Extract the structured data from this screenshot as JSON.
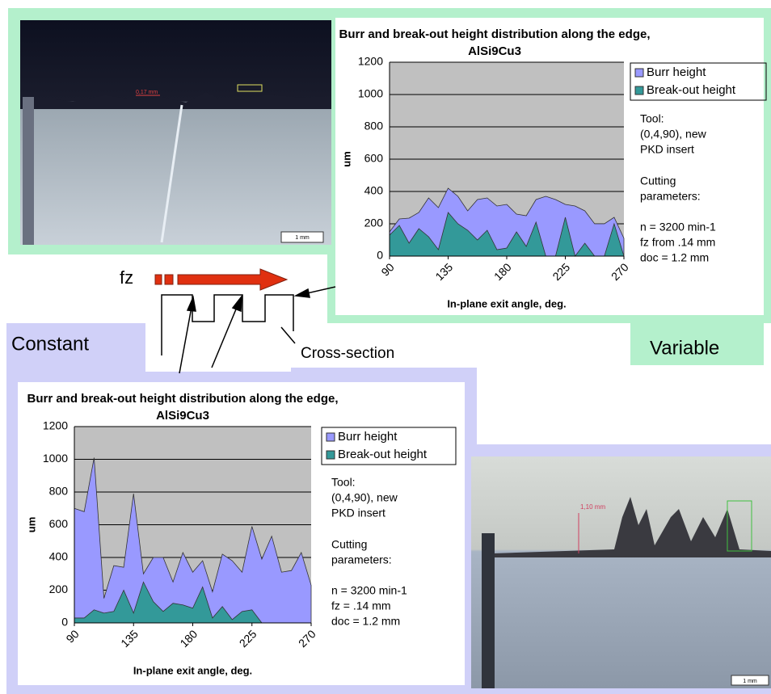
{
  "chart_data": [
    {
      "type": "area",
      "title": "Burr and break-out height distribution along the edge, AlSi9Cu3",
      "x_label": "In-plane exit angle, deg.",
      "y_label": "um",
      "x": [
        90,
        97.5,
        105,
        112.5,
        120,
        127.5,
        135,
        142.5,
        150,
        157.5,
        165,
        172.5,
        180,
        187.5,
        195,
        202.5,
        210,
        217.5,
        225,
        232.5,
        240,
        247.5,
        255,
        262.5,
        270
      ],
      "series": [
        {
          "name": "Burr height",
          "color": "#9999ff",
          "values": [
            150,
            230,
            235,
            270,
            360,
            300,
            420,
            370,
            280,
            350,
            360,
            310,
            320,
            260,
            250,
            350,
            370,
            350,
            320,
            310,
            280,
            200,
            200,
            240,
            110
          ]
        },
        {
          "name": "Break-out height",
          "color": "#339999",
          "values": [
            130,
            190,
            80,
            170,
            120,
            40,
            270,
            200,
            160,
            100,
            160,
            40,
            50,
            150,
            60,
            210,
            0,
            0,
            240,
            0,
            80,
            0,
            0,
            200,
            0
          ]
        }
      ],
      "xlim": [
        90,
        270
      ],
      "xticks": [
        90,
        135,
        180,
        225,
        270
      ],
      "ylim": [
        0,
        1200
      ],
      "yticks": [
        0,
        200,
        400,
        600,
        800,
        1000,
        1200
      ],
      "grid": true,
      "legend": "right",
      "notes": [
        "Tool:",
        "(0,4,90), new",
        "PKD insert",
        "Cutting",
        "parameters:",
        "n = 3200 min-1",
        "fz from .14 mm",
        "doc = 1.2 mm"
      ]
    },
    {
      "type": "area",
      "title": "Burr and break-out height distribution along the edge, AlSi9Cu3",
      "x_label": "In-plane exit angle, deg.",
      "y_label": "um",
      "x": [
        90,
        97.5,
        105,
        112.5,
        120,
        127.5,
        135,
        142.5,
        150,
        157.5,
        165,
        172.5,
        180,
        187.5,
        195,
        202.5,
        210,
        217.5,
        225,
        232.5,
        240,
        247.5,
        255,
        262.5,
        270
      ],
      "series": [
        {
          "name": "Burr height",
          "color": "#9999ff",
          "values": [
            700,
            680,
            1010,
            150,
            350,
            340,
            790,
            300,
            400,
            400,
            250,
            430,
            310,
            380,
            190,
            420,
            380,
            310,
            590,
            390,
            530,
            310,
            320,
            430,
            230
          ]
        },
        {
          "name": "Break-out height",
          "color": "#339999",
          "values": [
            30,
            30,
            80,
            60,
            70,
            200,
            60,
            250,
            130,
            70,
            120,
            110,
            90,
            220,
            30,
            100,
            20,
            70,
            80,
            0,
            0,
            0,
            0,
            0,
            0
          ]
        }
      ],
      "xlim": [
        90,
        270
      ],
      "xticks": [
        90,
        135,
        180,
        225,
        270
      ],
      "ylim": [
        0,
        1200
      ],
      "yticks": [
        0,
        200,
        400,
        600,
        800,
        1000,
        1200
      ],
      "grid": true,
      "legend": "right",
      "notes": [
        "Tool:",
        "(0,4,90), new",
        "PKD insert",
        "Cutting",
        "parameters:",
        "n = 3200 min-1",
        "fz = .14 mm",
        "doc = 1.2 mm"
      ]
    }
  ],
  "labels": {
    "fz": "fz",
    "constant": "Constant",
    "variable": "Variable",
    "cross_section": "Cross-section",
    "photo_top_label": "0,17 mm",
    "photo_top_scale": "1 mm",
    "photo_bottom_label": "1,10 mm",
    "photo_bottom_scale": "1 mm"
  }
}
